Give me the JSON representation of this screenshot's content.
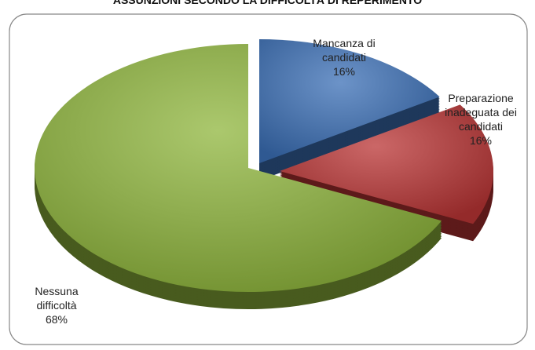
{
  "chart_data": {
    "type": "pie",
    "title": "ASSUNZIONI SECONDO LA DIFFICOLTÀ DI REPERIMENTO",
    "categories": [
      "Mancanza di candidati",
      "Preparazione inadeguata dei candidati",
      "Nessuna difficoltà"
    ],
    "values": [
      16,
      16,
      68
    ],
    "value_labels": [
      "16%",
      "16%",
      "68%"
    ],
    "colors": [
      "#3b6fb6",
      "#b93434",
      "#8fb53c"
    ]
  }
}
